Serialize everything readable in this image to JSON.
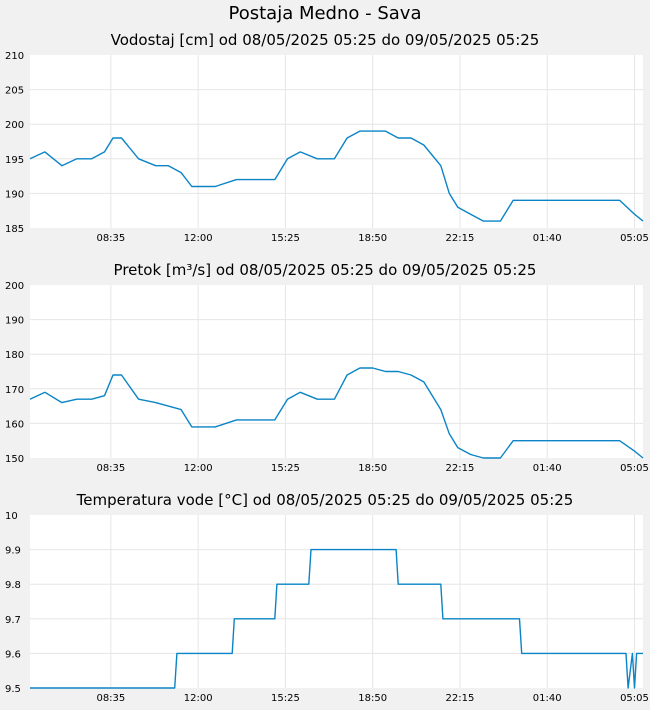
{
  "page_title": "Postaja Medno - Sava",
  "colors": {
    "line": "#0a84c6",
    "grid": "#e6e6e6",
    "plot_bg": "#ffffff",
    "page_bg": "#f1f1f1"
  },
  "chart_data": [
    {
      "type": "line",
      "title": "Vodostaj [cm] od 08/05/2025 05:25 do 09/05/2025 05:25",
      "xlabel": "",
      "ylabel": "",
      "xlim": [
        "08/05/2025 05:25",
        "09/05/2025 05:25"
      ],
      "x_ticks": [
        "08:35",
        "12:00",
        "15:25",
        "18:50",
        "22:15",
        "01:40",
        "05:05"
      ],
      "ylim": [
        185,
        210
      ],
      "y_ticks": [
        185,
        190,
        195,
        200,
        205,
        210
      ],
      "grid": true,
      "x": [
        "05:25",
        "06:00",
        "06:40",
        "07:15",
        "07:50",
        "08:20",
        "08:40",
        "09:00",
        "09:40",
        "10:20",
        "10:50",
        "11:20",
        "11:45",
        "12:00",
        "12:40",
        "13:30",
        "14:00",
        "14:30",
        "15:00",
        "15:30",
        "16:00",
        "16:40",
        "17:20",
        "17:50",
        "18:20",
        "18:50",
        "19:20",
        "19:50",
        "20:20",
        "20:50",
        "21:30",
        "21:50",
        "22:10",
        "22:40",
        "23:10",
        "23:50",
        "00:20",
        "00:50",
        "01:20",
        "01:40",
        "02:20",
        "02:50",
        "03:30",
        "04:00",
        "04:30",
        "05:05",
        "05:25"
      ],
      "series": [
        {
          "values": [
            195,
            196,
            194,
            195,
            195,
            196,
            198,
            198,
            195,
            194,
            194,
            193,
            191,
            191,
            191,
            192,
            192,
            192,
            192,
            195,
            196,
            195,
            195,
            198,
            199,
            199,
            199,
            198,
            198,
            197,
            194,
            190,
            188,
            187,
            186,
            186,
            189,
            189,
            189,
            189,
            189,
            189,
            189,
            189,
            189,
            187,
            186
          ]
        }
      ]
    },
    {
      "type": "line",
      "title": "Pretok [m³/s] od 08/05/2025 05:25 do 09/05/2025 05:25",
      "xlabel": "",
      "ylabel": "",
      "xlim": [
        "08/05/2025 05:25",
        "09/05/2025 05:25"
      ],
      "x_ticks": [
        "08:35",
        "12:00",
        "15:25",
        "18:50",
        "22:15",
        "01:40",
        "05:05"
      ],
      "ylim": [
        150,
        200
      ],
      "y_ticks": [
        150,
        160,
        170,
        180,
        190,
        200
      ],
      "grid": true,
      "x": [
        "05:25",
        "06:00",
        "06:40",
        "07:15",
        "07:50",
        "08:20",
        "08:40",
        "09:00",
        "09:40",
        "10:20",
        "10:50",
        "11:20",
        "11:45",
        "12:00",
        "12:40",
        "13:30",
        "14:00",
        "14:30",
        "15:00",
        "15:30",
        "16:00",
        "16:40",
        "17:20",
        "17:50",
        "18:20",
        "18:50",
        "19:20",
        "19:50",
        "20:20",
        "20:50",
        "21:30",
        "21:50",
        "22:10",
        "22:40",
        "23:10",
        "23:50",
        "00:20",
        "00:50",
        "01:20",
        "01:40",
        "02:20",
        "02:50",
        "03:30",
        "04:00",
        "04:30",
        "05:05",
        "05:25"
      ],
      "series": [
        {
          "values": [
            167,
            169,
            166,
            167,
            167,
            168,
            174,
            174,
            167,
            166,
            165,
            164,
            159,
            159,
            159,
            161,
            161,
            161,
            161,
            167,
            169,
            167,
            167,
            174,
            176,
            176,
            175,
            175,
            174,
            172,
            164,
            157,
            153,
            151,
            150,
            150,
            155,
            155,
            155,
            155,
            155,
            155,
            155,
            155,
            155,
            152,
            150
          ]
        }
      ]
    },
    {
      "type": "line",
      "title": "Temperatura vode [°C] od 08/05/2025 05:25 do 09/05/2025 05:25",
      "xlabel": "",
      "ylabel": "",
      "xlim": [
        "08/05/2025 05:25",
        "09/05/2025 05:25"
      ],
      "x_ticks": [
        "08:35",
        "12:00",
        "15:25",
        "18:50",
        "22:15",
        "01:40",
        "05:05"
      ],
      "ylim": [
        9.5,
        10
      ],
      "y_ticks": [
        "9.5",
        "9.6",
        "9.7",
        "9.8",
        "9.9",
        "10"
      ],
      "grid": true,
      "x": [
        "05:25",
        "11:05",
        "11:10",
        "13:20",
        "13:25",
        "15:00",
        "15:05",
        "16:20",
        "16:25",
        "19:45",
        "19:50",
        "21:30",
        "21:35",
        "00:35",
        "00:40",
        "04:45",
        "04:50",
        "05:00",
        "05:05",
        "05:10",
        "05:25"
      ],
      "series": [
        {
          "values": [
            9.5,
            9.5,
            9.6,
            9.6,
            9.7,
            9.7,
            9.8,
            9.8,
            9.9,
            9.9,
            9.8,
            9.8,
            9.7,
            9.7,
            9.6,
            9.6,
            9.5,
            9.6,
            9.5,
            9.6,
            9.6
          ]
        }
      ]
    }
  ]
}
